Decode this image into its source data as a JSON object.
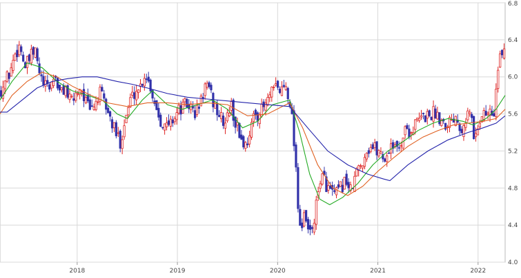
{
  "chart_data": {
    "type": "candlestick",
    "title": "",
    "xlabel": "",
    "ylabel": "",
    "ylim": [
      4.0,
      6.8
    ],
    "xlim": [
      2017.23,
      2022.27
    ],
    "grid": true,
    "y_ticks": [
      {
        "value": 4.0,
        "label": "4.0"
      },
      {
        "value": 4.4,
        "label": "4.4"
      },
      {
        "value": 4.8,
        "label": "4.8"
      },
      {
        "value": 5.2,
        "label": "5.2"
      },
      {
        "value": 5.6,
        "label": "5.6"
      },
      {
        "value": 6.0,
        "label": "6.0"
      },
      {
        "value": 6.4,
        "label": "6.4"
      },
      {
        "value": 6.8,
        "label": "6.8"
      }
    ],
    "x_ticks": [
      {
        "value": 2018.0,
        "label": "2018"
      },
      {
        "value": 2019.0,
        "label": "2019"
      },
      {
        "value": 2020.0,
        "label": "2020"
      },
      {
        "value": 2021.0,
        "label": "2021"
      },
      {
        "value": 2022.0,
        "label": "2022"
      }
    ],
    "up_color": "#dd2222",
    "down_color": "#3333aa",
    "close_path": [
      [
        2017.23,
        5.85
      ],
      [
        2017.28,
        5.95
      ],
      [
        2017.33,
        6.05
      ],
      [
        2017.38,
        6.25
      ],
      [
        2017.43,
        6.35
      ],
      [
        2017.48,
        6.1
      ],
      [
        2017.53,
        6.2
      ],
      [
        2017.58,
        6.28
      ],
      [
        2017.63,
        6.0
      ],
      [
        2017.68,
        5.88
      ],
      [
        2017.73,
        5.9
      ],
      [
        2017.78,
        6.02
      ],
      [
        2017.83,
        5.8
      ],
      [
        2017.88,
        5.9
      ],
      [
        2017.93,
        5.72
      ],
      [
        2017.98,
        5.8
      ],
      [
        2018.03,
        5.9
      ],
      [
        2018.08,
        5.75
      ],
      [
        2018.13,
        5.62
      ],
      [
        2018.18,
        5.72
      ],
      [
        2018.23,
        5.82
      ],
      [
        2018.28,
        5.7
      ],
      [
        2018.33,
        5.55
      ],
      [
        2018.38,
        5.4
      ],
      [
        2018.43,
        5.3
      ],
      [
        2018.48,
        5.55
      ],
      [
        2018.53,
        5.75
      ],
      [
        2018.58,
        5.85
      ],
      [
        2018.63,
        5.9
      ],
      [
        2018.68,
        6.05
      ],
      [
        2018.73,
        5.9
      ],
      [
        2018.78,
        5.7
      ],
      [
        2018.83,
        5.55
      ],
      [
        2018.88,
        5.45
      ],
      [
        2018.93,
        5.5
      ],
      [
        2018.98,
        5.6
      ],
      [
        2019.03,
        5.65
      ],
      [
        2019.08,
        5.7
      ],
      [
        2019.13,
        5.68
      ],
      [
        2019.18,
        5.6
      ],
      [
        2019.23,
        5.72
      ],
      [
        2019.28,
        5.92
      ],
      [
        2019.33,
        5.8
      ],
      [
        2019.38,
        5.68
      ],
      [
        2019.43,
        5.55
      ],
      [
        2019.48,
        5.5
      ],
      [
        2019.53,
        5.7
      ],
      [
        2019.58,
        5.5
      ],
      [
        2019.63,
        5.35
      ],
      [
        2019.68,
        5.25
      ],
      [
        2019.73,
        5.45
      ],
      [
        2019.78,
        5.6
      ],
      [
        2019.83,
        5.62
      ],
      [
        2019.88,
        5.7
      ],
      [
        2019.93,
        5.8
      ],
      [
        2019.98,
        5.88
      ],
      [
        2020.03,
        5.85
      ],
      [
        2020.08,
        5.92
      ],
      [
        2020.13,
        5.72
      ],
      [
        2020.18,
        5.1
      ],
      [
        2020.21,
        4.5
      ],
      [
        2020.24,
        4.35
      ],
      [
        2020.27,
        4.5
      ],
      [
        2020.3,
        4.35
      ],
      [
        2020.33,
        4.3
      ],
      [
        2020.38,
        4.55
      ],
      [
        2020.43,
        4.95
      ],
      [
        2020.48,
        4.85
      ],
      [
        2020.53,
        4.75
      ],
      [
        2020.58,
        4.72
      ],
      [
        2020.63,
        4.8
      ],
      [
        2020.68,
        4.9
      ],
      [
        2020.73,
        4.75
      ],
      [
        2020.78,
        4.95
      ],
      [
        2020.83,
        5.05
      ],
      [
        2020.88,
        5.2
      ],
      [
        2020.93,
        5.25
      ],
      [
        2020.98,
        5.22
      ],
      [
        2021.03,
        5.18
      ],
      [
        2021.08,
        5.1
      ],
      [
        2021.13,
        5.3
      ],
      [
        2021.18,
        5.2
      ],
      [
        2021.23,
        5.3
      ],
      [
        2021.28,
        5.45
      ],
      [
        2021.33,
        5.4
      ],
      [
        2021.38,
        5.5
      ],
      [
        2021.43,
        5.55
      ],
      [
        2021.48,
        5.58
      ],
      [
        2021.53,
        5.6
      ],
      [
        2021.58,
        5.62
      ],
      [
        2021.63,
        5.55
      ],
      [
        2021.68,
        5.5
      ],
      [
        2021.73,
        5.55
      ],
      [
        2021.78,
        5.6
      ],
      [
        2021.83,
        5.45
      ],
      [
        2021.88,
        5.58
      ],
      [
        2021.93,
        5.62
      ],
      [
        2021.96,
        5.3
      ],
      [
        2021.99,
        5.45
      ],
      [
        2022.02,
        5.55
      ],
      [
        2022.05,
        5.62
      ],
      [
        2022.08,
        5.58
      ],
      [
        2022.11,
        5.65
      ],
      [
        2022.14,
        5.55
      ],
      [
        2022.17,
        5.7
      ],
      [
        2022.19,
        6.0
      ],
      [
        2022.21,
        6.15
      ],
      [
        2022.23,
        6.2
      ],
      [
        2022.25,
        6.3
      ],
      [
        2022.27,
        6.35
      ]
    ],
    "series": [
      {
        "color": "#22aa22",
        "points": [
          [
            2017.23,
            5.75
          ],
          [
            2017.35,
            5.95
          ],
          [
            2017.5,
            6.15
          ],
          [
            2017.65,
            6.1
          ],
          [
            2017.8,
            5.95
          ],
          [
            2017.95,
            5.85
          ],
          [
            2018.1,
            5.8
          ],
          [
            2018.25,
            5.75
          ],
          [
            2018.4,
            5.6
          ],
          [
            2018.5,
            5.55
          ],
          [
            2018.65,
            5.75
          ],
          [
            2018.75,
            5.85
          ],
          [
            2018.9,
            5.7
          ],
          [
            2019.05,
            5.65
          ],
          [
            2019.2,
            5.7
          ],
          [
            2019.35,
            5.75
          ],
          [
            2019.5,
            5.65
          ],
          [
            2019.65,
            5.45
          ],
          [
            2019.8,
            5.52
          ],
          [
            2019.95,
            5.7
          ],
          [
            2020.12,
            5.75
          ],
          [
            2020.22,
            5.4
          ],
          [
            2020.32,
            4.95
          ],
          [
            2020.42,
            4.68
          ],
          [
            2020.52,
            4.62
          ],
          [
            2020.65,
            4.7
          ],
          [
            2020.8,
            4.85
          ],
          [
            2020.95,
            5.05
          ],
          [
            2021.1,
            5.2
          ],
          [
            2021.25,
            5.3
          ],
          [
            2021.4,
            5.42
          ],
          [
            2021.55,
            5.5
          ],
          [
            2021.7,
            5.55
          ],
          [
            2021.85,
            5.52
          ],
          [
            2021.95,
            5.48
          ],
          [
            2022.08,
            5.55
          ],
          [
            2022.18,
            5.65
          ],
          [
            2022.27,
            5.8
          ]
        ]
      },
      {
        "color": "#e06020",
        "points": [
          [
            2017.23,
            5.6
          ],
          [
            2017.35,
            5.8
          ],
          [
            2017.5,
            5.95
          ],
          [
            2017.65,
            6.05
          ],
          [
            2017.8,
            6.0
          ],
          [
            2017.95,
            5.9
          ],
          [
            2018.1,
            5.82
          ],
          [
            2018.3,
            5.72
          ],
          [
            2018.5,
            5.68
          ],
          [
            2018.7,
            5.72
          ],
          [
            2018.9,
            5.72
          ],
          [
            2019.1,
            5.7
          ],
          [
            2019.3,
            5.72
          ],
          [
            2019.5,
            5.7
          ],
          [
            2019.7,
            5.58
          ],
          [
            2019.9,
            5.6
          ],
          [
            2020.12,
            5.72
          ],
          [
            2020.25,
            5.45
          ],
          [
            2020.4,
            5.05
          ],
          [
            2020.55,
            4.8
          ],
          [
            2020.7,
            4.72
          ],
          [
            2020.85,
            4.82
          ],
          [
            2021.0,
            4.98
          ],
          [
            2021.15,
            5.12
          ],
          [
            2021.3,
            5.25
          ],
          [
            2021.45,
            5.35
          ],
          [
            2021.6,
            5.42
          ],
          [
            2021.75,
            5.48
          ],
          [
            2021.9,
            5.5
          ],
          [
            2022.05,
            5.52
          ],
          [
            2022.18,
            5.55
          ],
          [
            2022.27,
            5.65
          ]
        ]
      },
      {
        "color": "#2222aa",
        "points": [
          [
            2017.23,
            5.62
          ],
          [
            2017.3,
            5.62
          ],
          [
            2017.45,
            5.75
          ],
          [
            2017.6,
            5.88
          ],
          [
            2017.75,
            5.95
          ],
          [
            2017.9,
            5.98
          ],
          [
            2018.05,
            6.0
          ],
          [
            2018.2,
            6.0
          ],
          [
            2018.4,
            5.95
          ],
          [
            2018.55,
            5.92
          ],
          [
            2018.7,
            5.88
          ],
          [
            2018.9,
            5.82
          ],
          [
            2019.1,
            5.78
          ],
          [
            2019.3,
            5.76
          ],
          [
            2019.5,
            5.74
          ],
          [
            2019.7,
            5.72
          ],
          [
            2019.9,
            5.7
          ],
          [
            2020.12,
            5.68
          ],
          [
            2020.3,
            5.45
          ],
          [
            2020.5,
            5.2
          ],
          [
            2020.7,
            5.05
          ],
          [
            2020.9,
            4.95
          ],
          [
            2021.05,
            4.9
          ],
          [
            2021.12,
            4.88
          ],
          [
            2021.3,
            5.05
          ],
          [
            2021.5,
            5.2
          ],
          [
            2021.7,
            5.32
          ],
          [
            2021.9,
            5.4
          ],
          [
            2022.05,
            5.45
          ],
          [
            2022.18,
            5.5
          ],
          [
            2022.27,
            5.58
          ]
        ]
      }
    ]
  }
}
